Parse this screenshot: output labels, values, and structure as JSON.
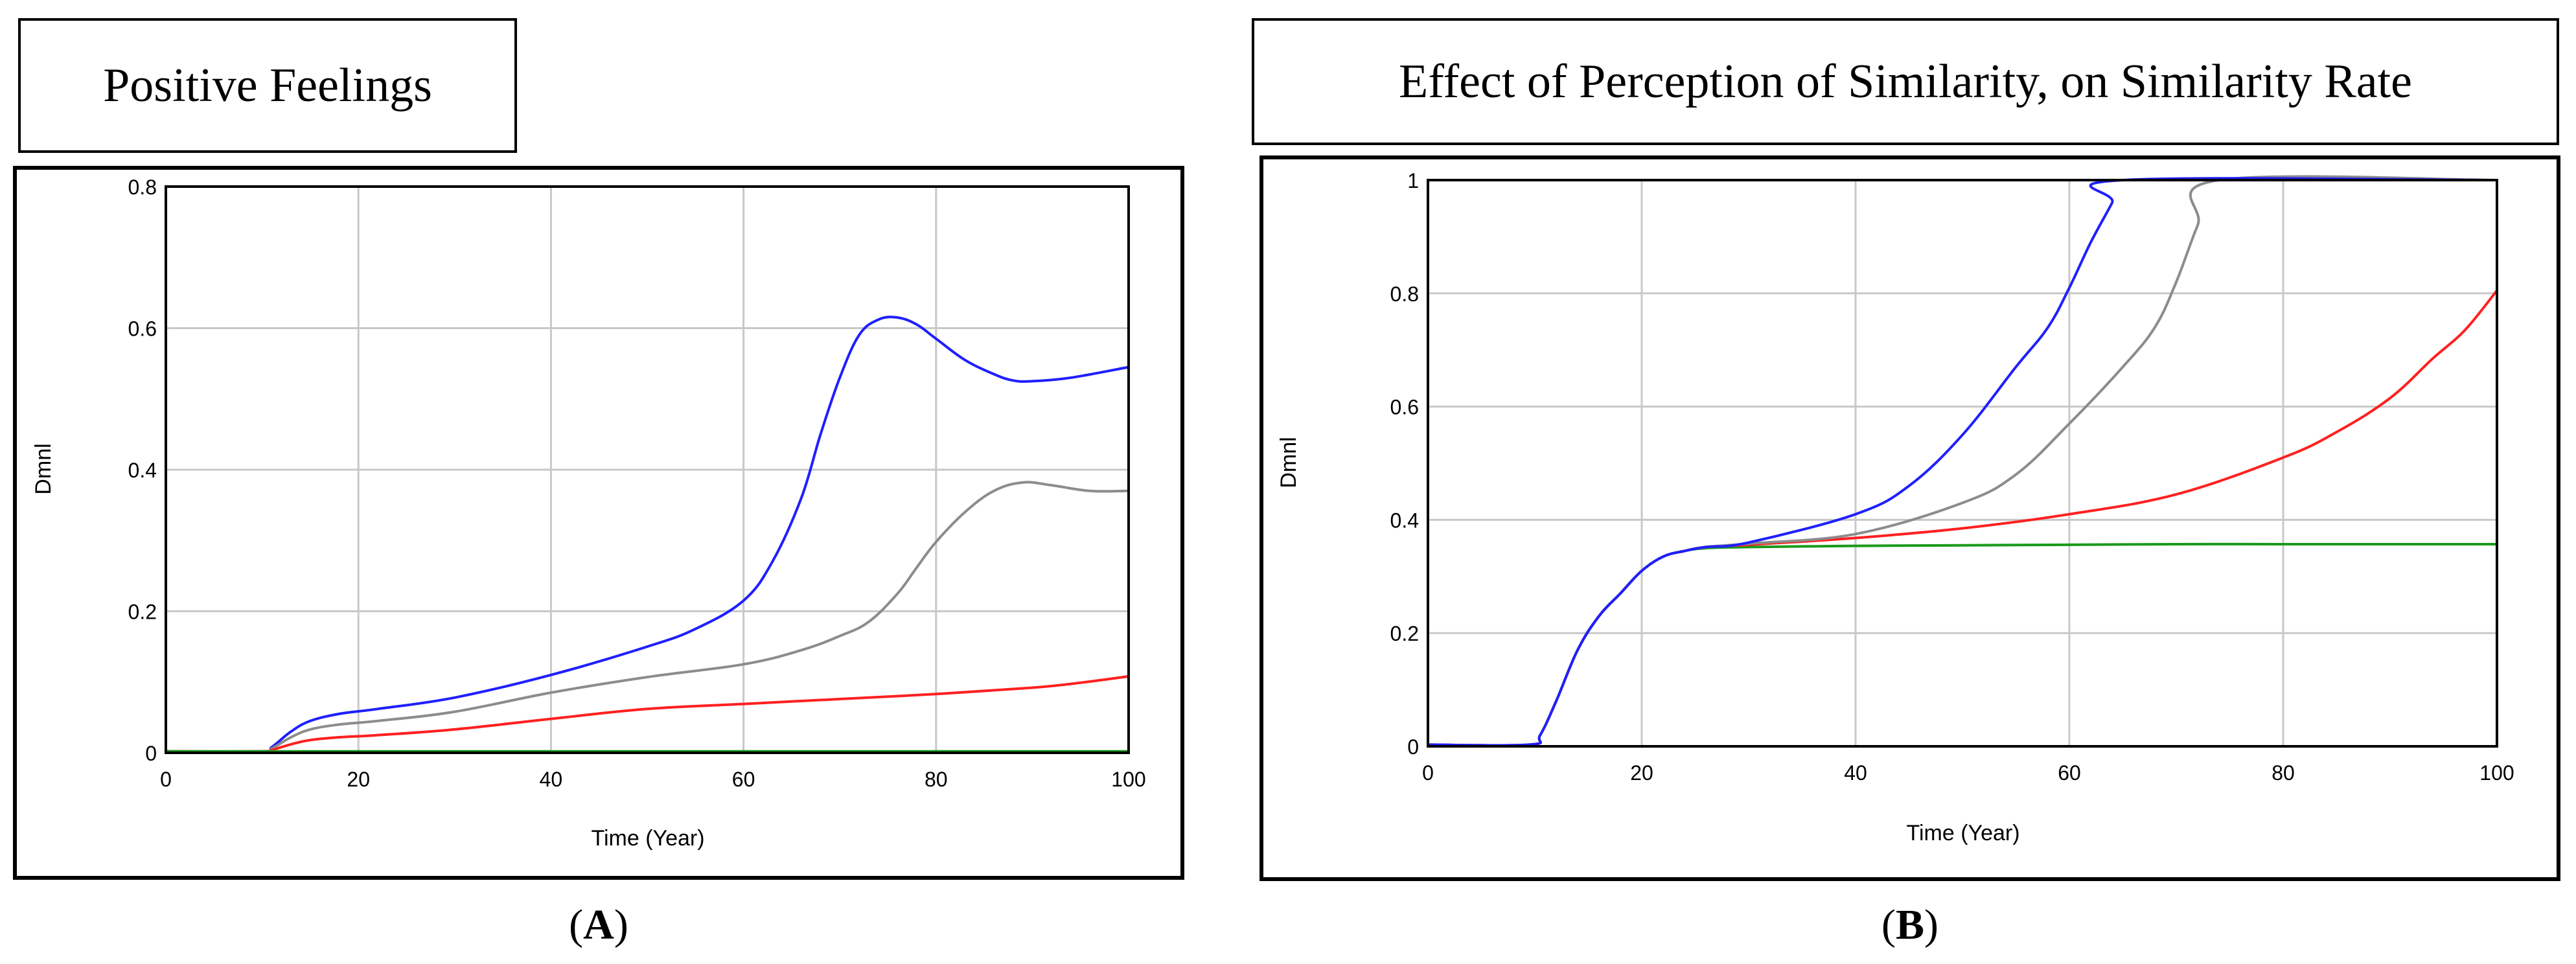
{
  "chart_data": [
    {
      "type": "line",
      "panel": "A",
      "title": "Positive Feelings",
      "xlabel": "Time (Year)",
      "ylabel": "Dmnl",
      "xlim": [
        0,
        100
      ],
      "ylim": [
        0,
        0.8
      ],
      "xticks": [
        "0",
        "20",
        "40",
        "60",
        "80",
        "100"
      ],
      "yticks": [
        "0",
        "0.2",
        "0.4",
        "0.6",
        "0.8"
      ],
      "grid": true,
      "caption_open": "(",
      "caption_letter": "A",
      "caption_close": ")",
      "series": [
        {
          "name": "blue",
          "color": "#1f1fff",
          "x": [
            0,
            10,
            11,
            13,
            15,
            18,
            22,
            30,
            40,
            50,
            55,
            60,
            63,
            66,
            68,
            70,
            72,
            74,
            76,
            78,
            80,
            83,
            86,
            88,
            90,
            94,
            100
          ],
          "y": [
            0.002,
            0.002,
            0.008,
            0.03,
            0.045,
            0.055,
            0.062,
            0.078,
            0.11,
            0.15,
            0.175,
            0.215,
            0.27,
            0.36,
            0.45,
            0.53,
            0.59,
            0.612,
            0.615,
            0.605,
            0.585,
            0.555,
            0.535,
            0.526,
            0.525,
            0.53,
            0.545
          ]
        },
        {
          "name": "gray",
          "color": "#8c8c8c",
          "x": [
            0,
            10,
            11,
            13,
            15,
            18,
            22,
            30,
            40,
            50,
            60,
            66,
            70,
            73,
            76,
            78,
            80,
            83,
            86,
            89,
            92,
            96,
            100
          ],
          "y": [
            0.002,
            0.002,
            0.006,
            0.022,
            0.033,
            0.04,
            0.045,
            0.058,
            0.085,
            0.107,
            0.125,
            0.145,
            0.165,
            0.185,
            0.225,
            0.262,
            0.298,
            0.34,
            0.37,
            0.382,
            0.378,
            0.37,
            0.37
          ]
        },
        {
          "name": "red",
          "color": "#ff2020",
          "x": [
            0,
            10,
            11,
            13,
            15,
            18,
            22,
            30,
            40,
            50,
            60,
            70,
            80,
            90,
            95,
            100
          ],
          "y": [
            0.002,
            0.002,
            0.004,
            0.012,
            0.018,
            0.022,
            0.025,
            0.033,
            0.048,
            0.062,
            0.069,
            0.076,
            0.083,
            0.092,
            0.099,
            0.108
          ]
        },
        {
          "name": "green",
          "color": "#1a9a1a",
          "x": [
            0,
            100
          ],
          "y": [
            0.002,
            0.002
          ]
        }
      ]
    },
    {
      "type": "line",
      "panel": "B",
      "title": "Effect of Perception of Similarity, on Similarity Rate",
      "xlabel": "Time (Year)",
      "ylabel": "Dmnl",
      "xlim": [
        0,
        100
      ],
      "ylim": [
        0,
        1
      ],
      "xticks": [
        "0",
        "20",
        "40",
        "60",
        "80",
        "100"
      ],
      "yticks": [
        "0",
        "0.2",
        "0.4",
        "0.6",
        "0.8",
        "1"
      ],
      "grid": true,
      "caption_open": "(",
      "caption_letter": "B",
      "caption_close": ")",
      "series": [
        {
          "name": "green",
          "color": "#1a9a1a",
          "x": [
            0,
            9.5,
            10.5,
            12,
            14,
            16,
            18,
            20,
            22,
            24,
            26,
            30,
            40,
            50,
            60,
            70,
            80,
            90,
            100
          ],
          "y": [
            0.003,
            0.003,
            0.02,
            0.08,
            0.17,
            0.23,
            0.27,
            0.31,
            0.335,
            0.345,
            0.35,
            0.352,
            0.354,
            0.355,
            0.356,
            0.357,
            0.357,
            0.357,
            0.357
          ]
        },
        {
          "name": "red",
          "color": "#ff2020",
          "x": [
            0,
            9.5,
            10.5,
            12,
            14,
            16,
            18,
            20,
            22,
            24,
            26,
            30,
            40,
            50,
            60,
            70,
            80,
            85,
            90,
            94,
            97,
            100
          ],
          "y": [
            0.003,
            0.003,
            0.02,
            0.08,
            0.17,
            0.23,
            0.27,
            0.31,
            0.335,
            0.345,
            0.352,
            0.356,
            0.368,
            0.385,
            0.41,
            0.445,
            0.51,
            0.555,
            0.615,
            0.685,
            0.735,
            0.805
          ]
        },
        {
          "name": "gray",
          "color": "#8c8c8c",
          "x": [
            0,
            9.5,
            10.5,
            12,
            14,
            16,
            18,
            20,
            22,
            24,
            26,
            30,
            40,
            50,
            55,
            60,
            65,
            68,
            70,
            72,
            74,
            100
          ],
          "y": [
            0.003,
            0.003,
            0.02,
            0.08,
            0.17,
            0.23,
            0.27,
            0.31,
            0.335,
            0.345,
            0.352,
            0.358,
            0.375,
            0.43,
            0.48,
            0.57,
            0.67,
            0.74,
            0.82,
            0.92,
            1.0,
            1.0
          ]
        },
        {
          "name": "blue",
          "color": "#1f1fff",
          "x": [
            0,
            9.5,
            10.5,
            12,
            14,
            16,
            18,
            20,
            22,
            24,
            26,
            30,
            40,
            45,
            50,
            55,
            58,
            60,
            62,
            64,
            65,
            100
          ],
          "y": [
            0.003,
            0.003,
            0.02,
            0.08,
            0.17,
            0.23,
            0.27,
            0.31,
            0.335,
            0.345,
            0.352,
            0.36,
            0.41,
            0.46,
            0.55,
            0.67,
            0.74,
            0.81,
            0.89,
            0.96,
            1.0,
            1.0
          ]
        }
      ]
    }
  ]
}
